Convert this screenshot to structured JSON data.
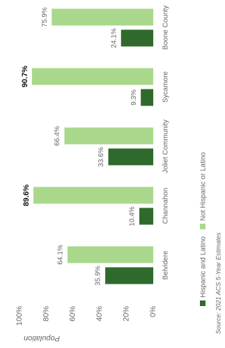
{
  "chart_data": {
    "type": "bar",
    "y_label": "Population",
    "categories": [
      "Belvidere",
      "Channahon",
      "Joliet Community",
      "Sycamore",
      "Boone County"
    ],
    "series": [
      {
        "name": "Hispanic and Latino",
        "color": "#2f6a2c",
        "values": [
          35.9,
          10.4,
          33.6,
          9.3,
          24.1
        ],
        "value_labels": [
          "35.9%",
          "10.4%",
          "33.6%",
          "9.3%",
          "24.1%"
        ]
      },
      {
        "name": "Not Hispanic or Latino",
        "color": "#a9d88c",
        "values": [
          64.1,
          89.6,
          66.4,
          90.7,
          75.9
        ],
        "value_labels": [
          "64.1%",
          "89.6%",
          "66.4%",
          "90.7%",
          "75.9%"
        ]
      }
    ],
    "ylim": [
      0,
      100
    ],
    "yticks": [
      {
        "value": 0,
        "label": "0%"
      },
      {
        "value": 20,
        "label": "20%"
      },
      {
        "value": 40,
        "label": "40%"
      },
      {
        "value": 60,
        "label": "60%"
      },
      {
        "value": 80,
        "label": "80%"
      },
      {
        "value": 100,
        "label": "100%"
      }
    ],
    "source": "Source: 2021 ACS 5-Year Estimates"
  }
}
